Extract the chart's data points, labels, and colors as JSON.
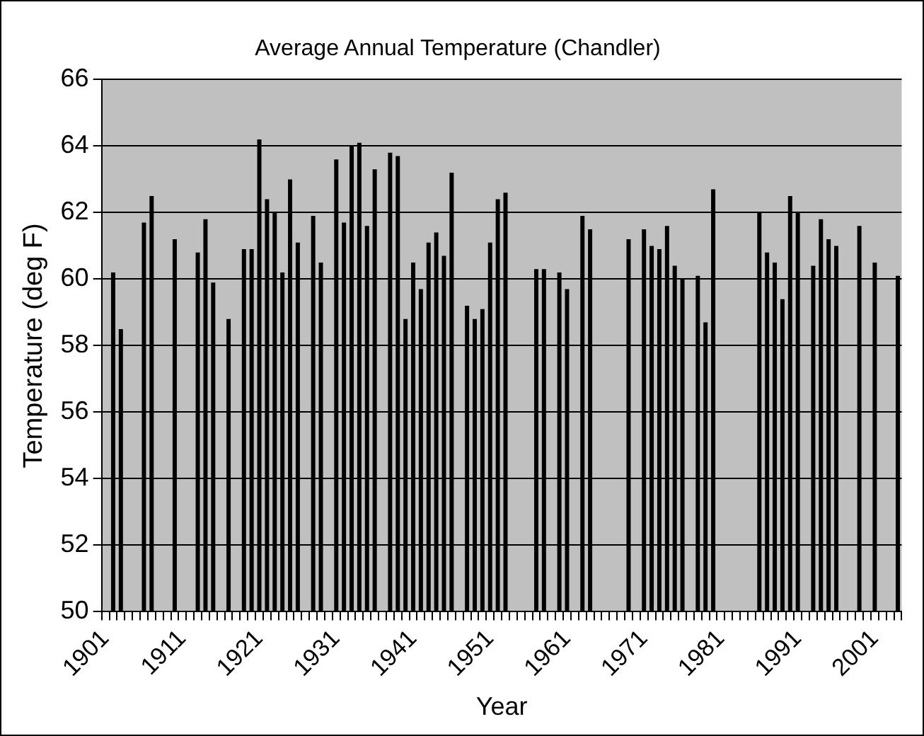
{
  "chart_data": {
    "type": "bar",
    "title": "Average Annual Temperature (Chandler)",
    "xlabel": "Year",
    "ylabel": "Temperature (deg F)",
    "categories": [
      "1901",
      null,
      null,
      null,
      null,
      null,
      null,
      null,
      null,
      null,
      "1911",
      null,
      null,
      null,
      null,
      null,
      null,
      null,
      null,
      null,
      "1921",
      null,
      null,
      null,
      null,
      null,
      null,
      null,
      null,
      null,
      "1931",
      null,
      null,
      null,
      null,
      null,
      null,
      null,
      null,
      null,
      "1941",
      null,
      null,
      null,
      null,
      null,
      null,
      null,
      null,
      null,
      "1951",
      null,
      null,
      null,
      null,
      null,
      null,
      null,
      null,
      null,
      "1961",
      null,
      null,
      null,
      null,
      null,
      null,
      null,
      null,
      null,
      "1971",
      null,
      null,
      null,
      null,
      null,
      null,
      null,
      null,
      null,
      "1981",
      null,
      null,
      null,
      null,
      null,
      null,
      null,
      null,
      null,
      "1991",
      null,
      null,
      null,
      null,
      null,
      null,
      null,
      null,
      null,
      "2001",
      null,
      null,
      null
    ],
    "values": [
      null,
      60.2,
      58.5,
      null,
      null,
      61.7,
      62.5,
      null,
      null,
      61.2,
      null,
      null,
      60.8,
      61.8,
      59.9,
      null,
      58.8,
      null,
      60.9,
      60.9,
      64.2,
      62.4,
      62.0,
      60.2,
      63.0,
      61.1,
      null,
      61.9,
      60.5,
      null,
      63.6,
      61.7,
      64.0,
      64.1,
      61.6,
      63.3,
      null,
      63.8,
      63.7,
      58.8,
      60.5,
      59.7,
      61.1,
      61.4,
      60.7,
      63.2,
      null,
      59.2,
      58.8,
      59.1,
      61.1,
      62.4,
      62.6,
      null,
      null,
      null,
      60.3,
      60.3,
      null,
      60.2,
      59.7,
      null,
      61.9,
      61.5,
      null,
      null,
      null,
      null,
      61.2,
      null,
      61.5,
      61.0,
      60.9,
      61.6,
      60.4,
      60.0,
      null,
      60.1,
      58.7,
      62.7,
      null,
      null,
      null,
      null,
      null,
      62.0,
      60.8,
      60.5,
      59.4,
      62.5,
      62.0,
      null,
      60.4,
      61.8,
      61.2,
      61.0,
      null,
      null,
      61.6,
      null,
      60.5,
      null,
      null,
      60.1
    ],
    "color": "#000000",
    "ylim": [
      50,
      66
    ],
    "yticks": [
      50,
      52,
      54,
      56,
      58,
      60,
      62,
      64,
      66
    ],
    "grid": "y",
    "legend": false
  }
}
